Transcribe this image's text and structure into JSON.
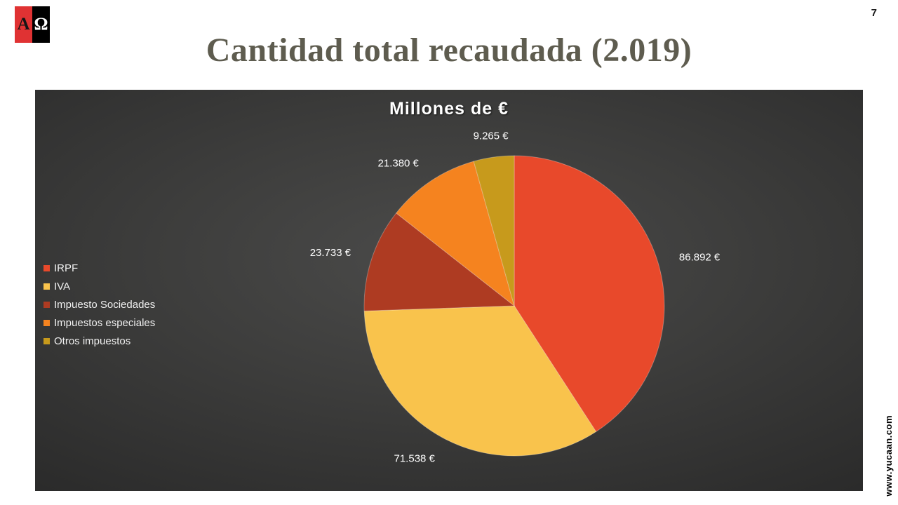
{
  "slide": {
    "page_number": "7",
    "title": "Cantidad total recaudada (2.019)",
    "watermark": "www.yucaan.com",
    "logo": {
      "letter_a": "A",
      "letter_omega": "Ω"
    },
    "colors": {
      "title_text": "#5e5c4f",
      "chart_background": "#3d3d3c",
      "logo_red": "#e03233"
    }
  },
  "chart_data": {
    "type": "pie",
    "title": "Millones de €",
    "legend_position": "left",
    "start_angle_deg": 0,
    "direction": "clockwise",
    "slices": [
      {
        "label": "IRPF",
        "value": 86892,
        "display": "86.892 €",
        "color": "#e8492b"
      },
      {
        "label": "IVA",
        "value": 71538,
        "display": "71.538 €",
        "color": "#f9c34c"
      },
      {
        "label": "Impuesto Sociedades",
        "value": 23733,
        "display": "23.733 €",
        "color": "#ae3b22"
      },
      {
        "label": "Impuestos especiales",
        "value": 21380,
        "display": "21.380 €",
        "color": "#f5831f"
      },
      {
        "label": "Otros impuestos",
        "value": 9265,
        "display": "9.265 €",
        "color": "#c79a1c"
      }
    ]
  }
}
